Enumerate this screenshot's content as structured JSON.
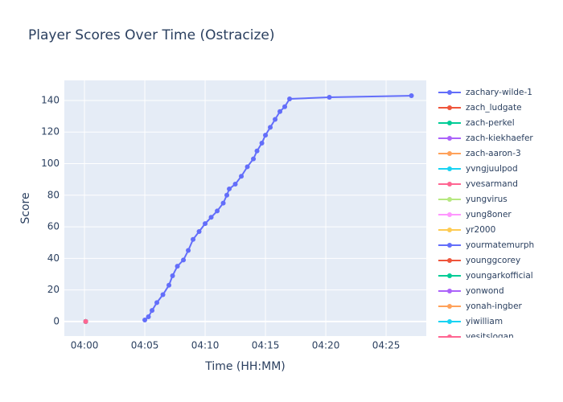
{
  "chart_data": {
    "type": "line",
    "title": "Player Scores Over Time (Ostracize)",
    "x_label": "Time (HH:MM)",
    "y_label": "Score",
    "xlim": [
      238.33,
      268.33
    ],
    "xticks": [
      {
        "value": 240,
        "label": "04:00"
      },
      {
        "value": 245,
        "label": "04:05"
      },
      {
        "value": 250,
        "label": "04:10"
      },
      {
        "value": 255,
        "label": "04:15"
      },
      {
        "value": 260,
        "label": "04:20"
      },
      {
        "value": 265,
        "label": "04:25"
      }
    ],
    "ylim": [
      -9.2,
      152.7
    ],
    "yticks": [
      0,
      20,
      40,
      60,
      80,
      100,
      120,
      140
    ],
    "grid": true,
    "legend": "right",
    "series": [
      {
        "name": "zachary-wilde-1",
        "color": "#636efa",
        "x": [
          245.0,
          245.3,
          245.6,
          246.0,
          246.5,
          247.0,
          247.3,
          247.7,
          248.2,
          248.6,
          249.0,
          249.5,
          250.0,
          250.5,
          251.0,
          251.5,
          251.8,
          252.0,
          252.5,
          253.0,
          253.5,
          254.0,
          254.3,
          254.7,
          255.0,
          255.4,
          255.8,
          256.2,
          256.6,
          257.0,
          260.3,
          267.1
        ],
        "values": [
          1,
          3,
          7,
          12,
          17,
          23,
          29,
          35,
          39,
          45,
          52,
          57,
          62,
          66,
          70,
          75,
          80,
          84,
          87,
          92,
          98,
          103,
          108,
          113,
          118,
          123,
          128,
          133,
          136,
          141,
          142,
          143
        ]
      },
      {
        "name": "zach_ludgate",
        "color": "#EF553B",
        "x": [
          240.1
        ],
        "values": [
          0
        ]
      },
      {
        "name": "zach-perkel",
        "color": "#00cc96",
        "x": [
          240.1
        ],
        "values": [
          0
        ]
      },
      {
        "name": "zach-kiekhaefer",
        "color": "#ab63fa",
        "x": [
          240.1
        ],
        "values": [
          0
        ]
      },
      {
        "name": "zach-aaron-3",
        "color": "#FFA15A",
        "x": [
          240.1
        ],
        "values": [
          0
        ]
      },
      {
        "name": "yvngjuulpod",
        "color": "#19d3f3",
        "x": [
          240.1
        ],
        "values": [
          0
        ]
      },
      {
        "name": "yvesarmand",
        "color": "#FF6692",
        "x": [
          240.1
        ],
        "values": [
          0
        ]
      },
      {
        "name": "yungvirus",
        "color": "#B6E880",
        "x": [
          240.1
        ],
        "values": [
          0
        ]
      },
      {
        "name": "yung8oner",
        "color": "#FF97FF",
        "x": [
          240.1
        ],
        "values": [
          0
        ]
      },
      {
        "name": "yr2000",
        "color": "#FECB52",
        "x": [
          240.1
        ],
        "values": [
          0
        ]
      },
      {
        "name": "yourmatemurph",
        "color": "#636efa",
        "x": [
          240.1
        ],
        "values": [
          0
        ]
      },
      {
        "name": "younggcorey",
        "color": "#EF553B",
        "x": [
          240.1
        ],
        "values": [
          0
        ]
      },
      {
        "name": "youngarkofficial",
        "color": "#00cc96",
        "x": [
          240.1
        ],
        "values": [
          0
        ]
      },
      {
        "name": "yonwond",
        "color": "#ab63fa",
        "x": [
          240.1
        ],
        "values": [
          0
        ]
      },
      {
        "name": "yonah-ingber",
        "color": "#FFA15A",
        "x": [
          240.1
        ],
        "values": [
          0
        ]
      },
      {
        "name": "yiwilliam",
        "color": "#19d3f3",
        "x": [
          240.1
        ],
        "values": [
          0
        ]
      },
      {
        "name": "yesitslogan",
        "color": "#FF6692",
        "x": [
          240.1
        ],
        "values": [
          0
        ]
      }
    ]
  }
}
